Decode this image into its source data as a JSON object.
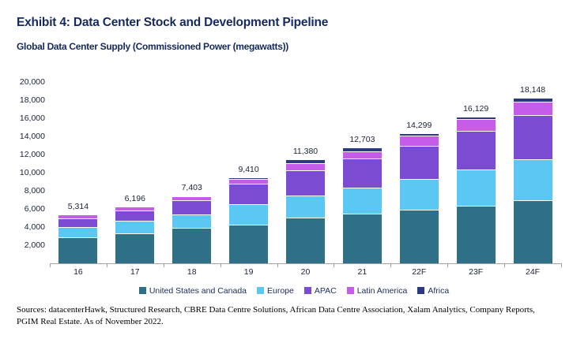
{
  "header": {
    "title": "Exhibit 4: Data Center Stock and Development Pipeline",
    "subtitle": "Global Data Center Supply (Commissioned Power (megawatts))"
  },
  "chart_data": {
    "type": "bar",
    "stacked": true,
    "title": "Global Data Center Supply (Commissioned Power (megawatts))",
    "xlabel": "",
    "ylabel": "",
    "ylim": [
      0,
      20000
    ],
    "ytick_step": 2000,
    "ytick_labels": [
      "2,000",
      "4,000",
      "6,000",
      "8,000",
      "10,000",
      "12,000",
      "14,000",
      "16,000",
      "18,000",
      "20,000"
    ],
    "grid": false,
    "legend_position": "bottom",
    "axis_color": "#A3A3A3",
    "categories": [
      "16",
      "17",
      "18",
      "19",
      "20",
      "21",
      "22F",
      "23F",
      "24F"
    ],
    "totals": [
      5314,
      6196,
      7403,
      9410,
      11380,
      12703,
      14299,
      16129,
      18148
    ],
    "total_labels": [
      "5,314",
      "6,196",
      "7,403",
      "9,410",
      "11,380",
      "12,703",
      "14,299",
      "16,129",
      "18,148"
    ],
    "series": [
      {
        "name": "United States and Canada",
        "color": "#2F7086",
        "values": [
          2750,
          3250,
          3800,
          4150,
          4950,
          5400,
          5850,
          6300,
          6850
        ]
      },
      {
        "name": "Europe",
        "color": "#5BC7F3",
        "values": [
          1150,
          1380,
          1500,
          2250,
          2450,
          2850,
          3350,
          3950,
          4500
        ]
      },
      {
        "name": "APAC",
        "color": "#7B4CD2",
        "values": [
          1000,
          1130,
          1600,
          2300,
          2800,
          3200,
          3700,
          4250,
          4900
        ]
      },
      {
        "name": "Latin America",
        "color": "#C65DE9",
        "values": [
          364,
          376,
          433,
          560,
          780,
          833,
          1099,
          1329,
          1528
        ]
      },
      {
        "name": "Africa",
        "color": "#2B3A7E",
        "values": [
          50,
          60,
          70,
          150,
          400,
          420,
          300,
          300,
          370
        ]
      }
    ]
  },
  "footer": {
    "line1": "Sources: datacenterHawk, Structured Research, CBRE Data Centre Solutions, African Data Centre Association, Xalam Analytics, Company Reports,",
    "line2": "PGIM Real Estate. As of November 2022."
  }
}
